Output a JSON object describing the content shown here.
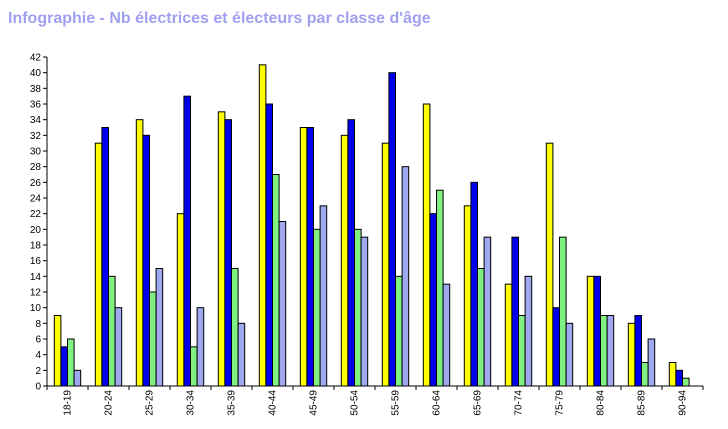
{
  "chart_data": {
    "type": "bar",
    "title": "Infographie - Nb électrices et électeurs par classe d'âge",
    "categories": [
      "18-19",
      "20-24",
      "25-29",
      "30-34",
      "35-39",
      "40-44",
      "45-49",
      "50-54",
      "55-59",
      "60-64",
      "65-69",
      "70-74",
      "75-79",
      "80-84",
      "85-89",
      "90-94"
    ],
    "series": [
      {
        "color": "#ffff00",
        "values": [
          9,
          31,
          34,
          22,
          35,
          41,
          33,
          32,
          31,
          36,
          23,
          13,
          31,
          14,
          8,
          3
        ]
      },
      {
        "color": "#0000ee",
        "values": [
          5,
          33,
          32,
          37,
          34,
          36,
          33,
          34,
          40,
          22,
          26,
          19,
          10,
          14,
          9,
          2
        ]
      },
      {
        "color": "#80f080",
        "values": [
          6,
          14,
          12,
          5,
          15,
          27,
          20,
          20,
          14,
          25,
          15,
          9,
          19,
          9,
          3,
          1
        ]
      },
      {
        "color": "#a0a8f0",
        "values": [
          2,
          10,
          15,
          10,
          8,
          21,
          23,
          19,
          28,
          13,
          19,
          14,
          8,
          9,
          6,
          0
        ]
      }
    ],
    "ylim": [
      0,
      42
    ],
    "ytick_step": 2,
    "grid": false,
    "legend": "none"
  }
}
